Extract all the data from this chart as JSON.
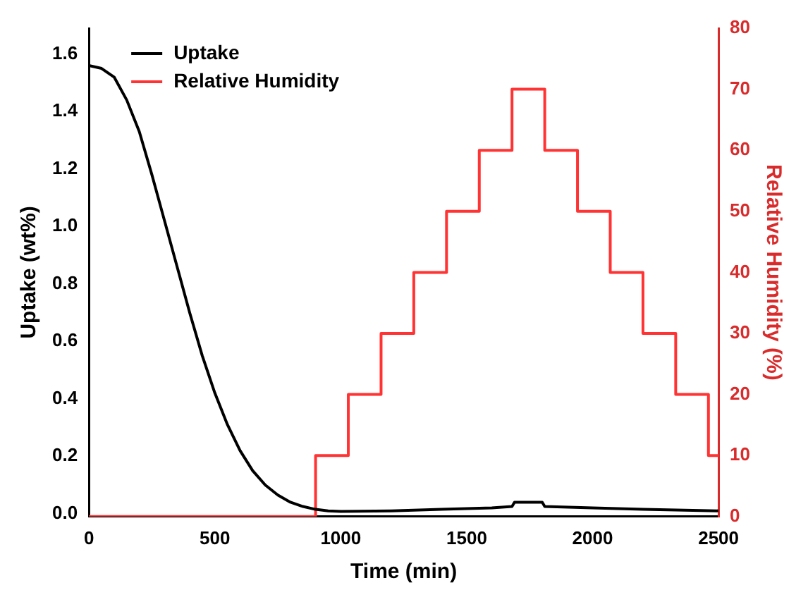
{
  "chart_data": {
    "type": "line",
    "xlabel": "Time (min)",
    "ylabel": "Uptake (wt%)",
    "y2label": "Relative Humidity (%)",
    "xlim": [
      0,
      2500
    ],
    "xticks": [
      0,
      500,
      1000,
      1500,
      2000,
      2500
    ],
    "ylim": [
      -0.01,
      1.69
    ],
    "yticks": [
      {
        "value": 0,
        "label": "0.0"
      },
      0.2,
      0.4,
      0.6,
      0.8,
      {
        "value": 1,
        "label": "1.0"
      },
      1.2,
      1.4,
      1.6
    ],
    "y2lim": [
      0,
      80
    ],
    "y2ticks": [
      0,
      10,
      20,
      30,
      40,
      50,
      60,
      70,
      80
    ],
    "grid": false,
    "legend": "top left",
    "marker": "none",
    "line_style": "solid",
    "series": [
      {
        "name": "Uptake",
        "type": "line",
        "color": "#000000",
        "x": [
          0,
          50,
          100,
          150,
          200,
          250,
          300,
          350,
          400,
          450,
          500,
          550,
          600,
          650,
          700,
          750,
          800,
          850,
          900,
          950,
          1000,
          1200,
          1400,
          1600,
          1680,
          1690,
          1800,
          1810,
          2000,
          2200,
          2500
        ],
        "values": [
          1.56,
          1.55,
          1.52,
          1.44,
          1.33,
          1.18,
          1.02,
          0.86,
          0.7,
          0.55,
          0.42,
          0.31,
          0.22,
          0.15,
          0.1,
          0.065,
          0.04,
          0.025,
          0.015,
          0.01,
          0.008,
          0.01,
          0.015,
          0.02,
          0.025,
          0.04,
          0.04,
          0.025,
          0.02,
          0.015,
          0.01
        ]
      },
      {
        "name": "Relative Humidity",
        "type": "step",
        "axis": "y2",
        "color": "#ff3333",
        "x": [
          0,
          900,
          1030,
          1160,
          1290,
          1420,
          1550,
          1680,
          1810,
          1940,
          2070,
          2200,
          2330,
          2460,
          2500
        ],
        "values": [
          0,
          10,
          20,
          30,
          40,
          50,
          60,
          70,
          60,
          50,
          40,
          30,
          20,
          10,
          10
        ]
      }
    ]
  }
}
